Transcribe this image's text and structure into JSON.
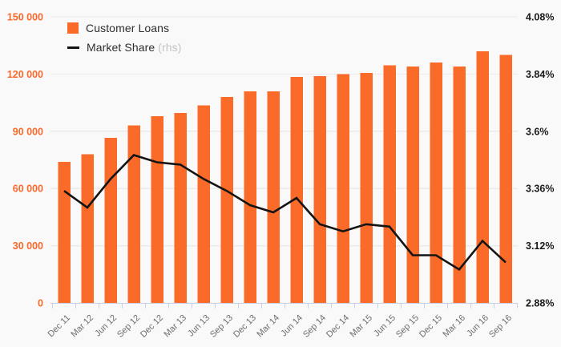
{
  "chart": {
    "background": "#f9f9f9",
    "bar_color": "#fa6a28",
    "line_color": "#141414",
    "grid_color": "#ebebeb",
    "axis_line_color": "#c9cfe6",
    "left_axis_label_color": "#f9692c",
    "right_axis_label_color": "#1a1a1a",
    "x_axis_label_color": "#6e6e6e",
    "legend_text_color": "#2f2f2f",
    "legend_muted_color": "#c3c3c3"
  },
  "legend": {
    "items": [
      {
        "label": "Customer Loans",
        "suffix": "",
        "type": "bar"
      },
      {
        "label": "Market Share",
        "suffix": "(rhs)",
        "type": "line"
      }
    ]
  },
  "chart_data": {
    "type": "bar",
    "subtype": "bar+line combo, dual axis",
    "categories": [
      "Dec 11",
      "Mar 12",
      "Jun 12",
      "Sep 12",
      "Dec 12",
      "Mar 13",
      "Jun 13",
      "Sep 13",
      "Dec 13",
      "Mar 14",
      "Jun 14",
      "Sep 14",
      "Dec 14",
      "Mar 15",
      "Jun 15",
      "Sep 15",
      "Dec 15",
      "Mar 16",
      "Jun 16",
      "Sep 16"
    ],
    "series": [
      {
        "name": "Customer Loans",
        "type": "bar",
        "axis": "left",
        "values": [
          74000,
          78000,
          86500,
          93000,
          98000,
          99500,
          103500,
          108000,
          111000,
          111000,
          118500,
          119000,
          120000,
          120500,
          124500,
          124000,
          126000,
          124000,
          132000,
          130000
        ]
      },
      {
        "name": "Market Share (rhs)",
        "type": "line",
        "axis": "right",
        "values": [
          3.35,
          3.28,
          3.4,
          3.5,
          3.47,
          3.46,
          3.4,
          3.35,
          3.29,
          3.26,
          3.32,
          3.21,
          3.18,
          3.21,
          3.2,
          3.08,
          3.08,
          3.02,
          3.14,
          3.05
        ]
      }
    ],
    "left_axis": {
      "min": 0,
      "max": 150000,
      "tick_values": [
        150000,
        120000,
        90000,
        60000,
        30000,
        0
      ],
      "tick_labels": [
        "150 000",
        "120 000",
        "90 000",
        "60 000",
        "30 000",
        "0"
      ]
    },
    "right_axis": {
      "min": 2.88,
      "max": 4.08,
      "tick_values": [
        4.08,
        3.84,
        3.6,
        3.36,
        3.12,
        2.88
      ],
      "tick_labels": [
        "4.08%",
        "3.84%",
        "3.6%",
        "3.36%",
        "3.12%",
        "2.88%"
      ]
    },
    "grid": true,
    "legend_position": "top-left"
  }
}
